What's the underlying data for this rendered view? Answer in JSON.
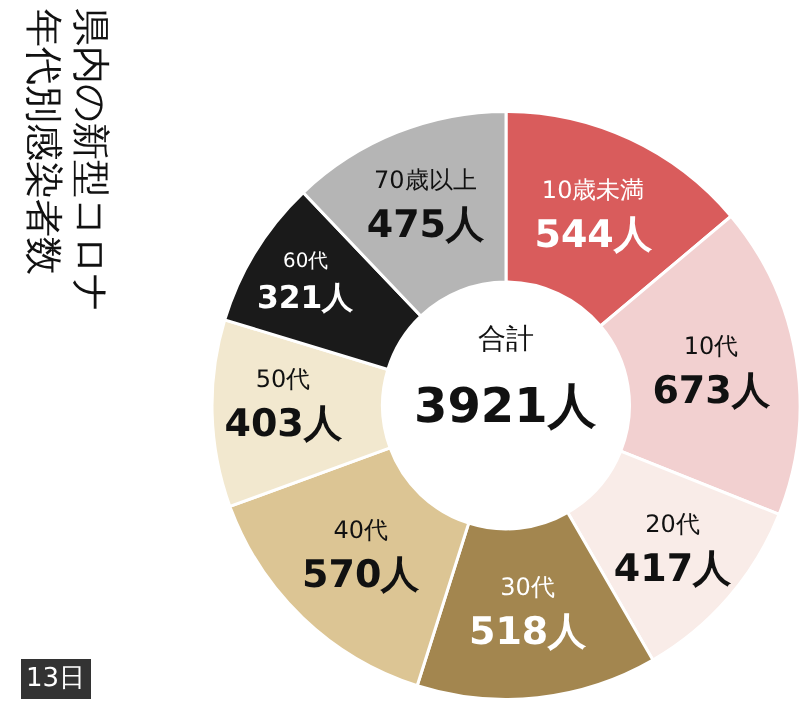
{
  "chart_data": {
    "type": "donut",
    "title": "県内の新型コロナ年代別感染者数",
    "categories": [
      "10歳未満",
      "10代",
      "20代",
      "30代",
      "40代",
      "50代",
      "60代",
      "70歳以上"
    ],
    "values": [
      544,
      673,
      417,
      518,
      570,
      403,
      321,
      475
    ],
    "value_labels": [
      "544人",
      "673人",
      "417人",
      "518人",
      "570人",
      "403人",
      "321人",
      "475人"
    ],
    "colors": [
      "#d95c5c",
      "#f2d0d0",
      "#f9ece8",
      "#a3864f",
      "#dcc594",
      "#f2e8cf",
      "#1a1a1a",
      "#b5b5b5"
    ],
    "annotations": [
      "合計",
      "3921人",
      "13日"
    ],
    "legend": false
  }
}
